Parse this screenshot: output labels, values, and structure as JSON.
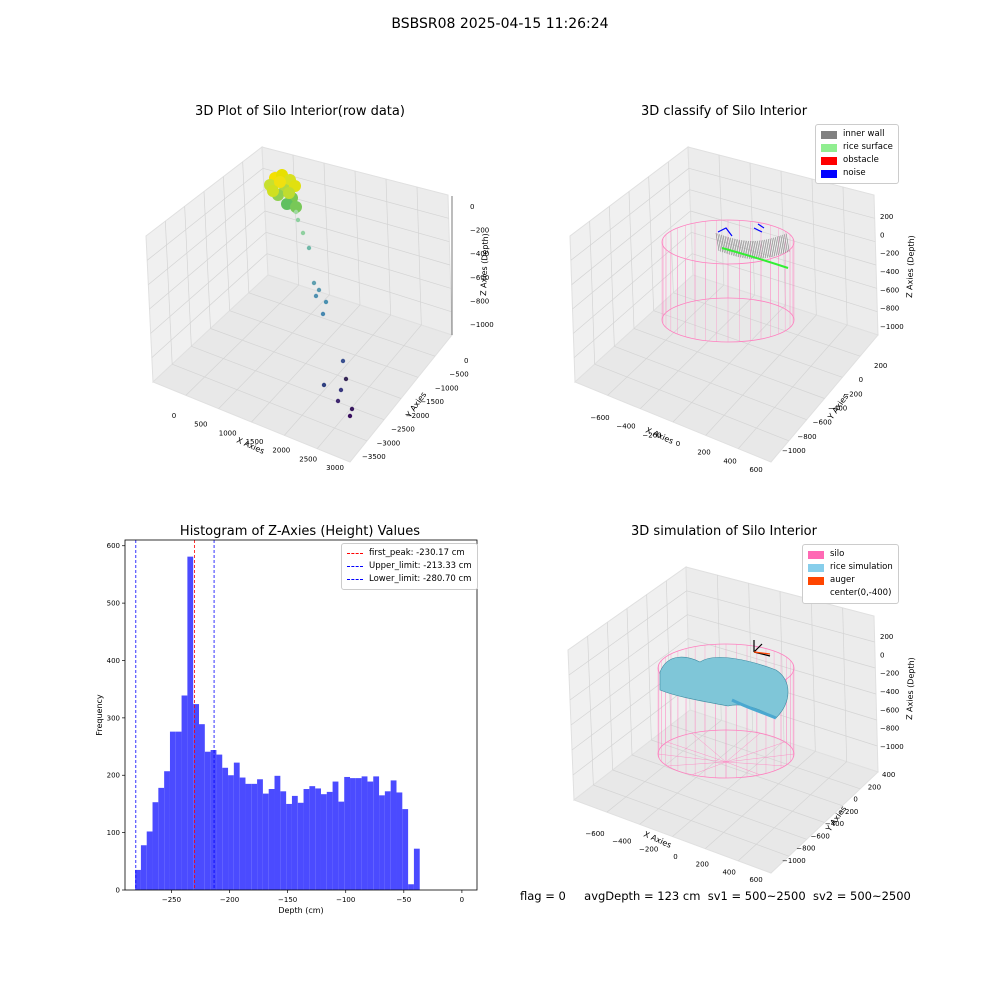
{
  "suptitle": "BSBSR08 2025-04-15 11:26:24",
  "panels": {
    "raw": {
      "title": "3D Plot of Silo Interior(row data)",
      "xlabel": "X Axies",
      "ylabel": "Y Axies",
      "zlabel": "Z Axies (Depth)",
      "xticks": [
        "0",
        "500",
        "1000",
        "1500",
        "2000",
        "2500",
        "3000"
      ],
      "yticks": [
        "0",
        "−500",
        "−1000",
        "−1500",
        "−2000",
        "−2500",
        "−3000",
        "−3500"
      ],
      "zticks": [
        "0",
        "−200",
        "−400",
        "−600",
        "−800",
        "−1000"
      ]
    },
    "classify": {
      "title": "3D classify of Silo Interior",
      "xlabel": "X Axies",
      "ylabel": "Y Axies",
      "zlabel": "Z Axies (Depth)",
      "xticks": [
        "−600",
        "−400",
        "−200",
        "0",
        "200",
        "400",
        "600"
      ],
      "yticks": [
        "200",
        "0",
        "−200",
        "−400",
        "−600",
        "−800",
        "−1000"
      ],
      "zticks": [
        "200",
        "0",
        "−200",
        "−400",
        "−600",
        "−800",
        "−1000"
      ],
      "legend": [
        {
          "label": "inner wall",
          "color": "#808080"
        },
        {
          "label": "rice surface",
          "color": "#90ee90"
        },
        {
          "label": "obstacle",
          "color": "#ff0000"
        },
        {
          "label": "noise",
          "color": "#0000ff"
        }
      ]
    },
    "simulation": {
      "title": "3D simulation of Silo Interior",
      "xlabel": "X Axies",
      "ylabel": "Y Axies",
      "zlabel": "Z Axies (Depth)",
      "xticks": [
        "−600",
        "−400",
        "−200",
        "0",
        "200",
        "400",
        "600"
      ],
      "yticks": [
        "400",
        "200",
        "0",
        "−200",
        "−400",
        "−600",
        "−800",
        "−1000"
      ],
      "zticks": [
        "200",
        "0",
        "−200",
        "−400",
        "−600",
        "−800",
        "−1000"
      ],
      "legend": [
        {
          "label": "silo",
          "color": "#ff69b4"
        },
        {
          "label": "rice simulation",
          "color": "#87ceeb"
        },
        {
          "label": "auger",
          "color": "#ff4500"
        },
        {
          "label": "center(0,-400)",
          "color": ""
        }
      ]
    }
  },
  "status": {
    "flag": "flag = 0",
    "avg": "avgDepth = 123 cm",
    "sv1": "sv1 = 500~2500",
    "sv2": "sv2 = 500~2500"
  },
  "chart_data": [
    {
      "type": "histogram",
      "title": "Histogram of Z-Axies (Height) Values",
      "xlabel": "Depth (cm)",
      "ylabel": "Frequency",
      "xlim": [
        -290,
        13
      ],
      "ylim": [
        0,
        610
      ],
      "xticks": [
        -250,
        -200,
        -150,
        -100,
        -50,
        0
      ],
      "yticks": [
        0,
        100,
        200,
        300,
        400,
        500,
        600
      ],
      "bar_color": "#4b4bff",
      "bins_start": -281.3,
      "bin_width": 5.0,
      "values": [
        35,
        78,
        102,
        153,
        178,
        207,
        276,
        276,
        339,
        581,
        324,
        289,
        241,
        244,
        236,
        213,
        200,
        222,
        196,
        185,
        185,
        193,
        168,
        176,
        199,
        172,
        150,
        164,
        152,
        176,
        181,
        177,
        167,
        171,
        189,
        154,
        197,
        195,
        195,
        198,
        189,
        198,
        165,
        172,
        191,
        170,
        141,
        10,
        72
      ],
      "vlines": [
        {
          "label": "first_peak: -230.17 cm",
          "x": -230.17,
          "color": "#ff0000"
        },
        {
          "label": "Upper_limit: -213.33 cm",
          "x": -213.33,
          "color": "#0000ff"
        },
        {
          "label": "Lower_limit: -280.70 cm",
          "x": -280.7,
          "color": "#0000ff"
        }
      ]
    }
  ]
}
